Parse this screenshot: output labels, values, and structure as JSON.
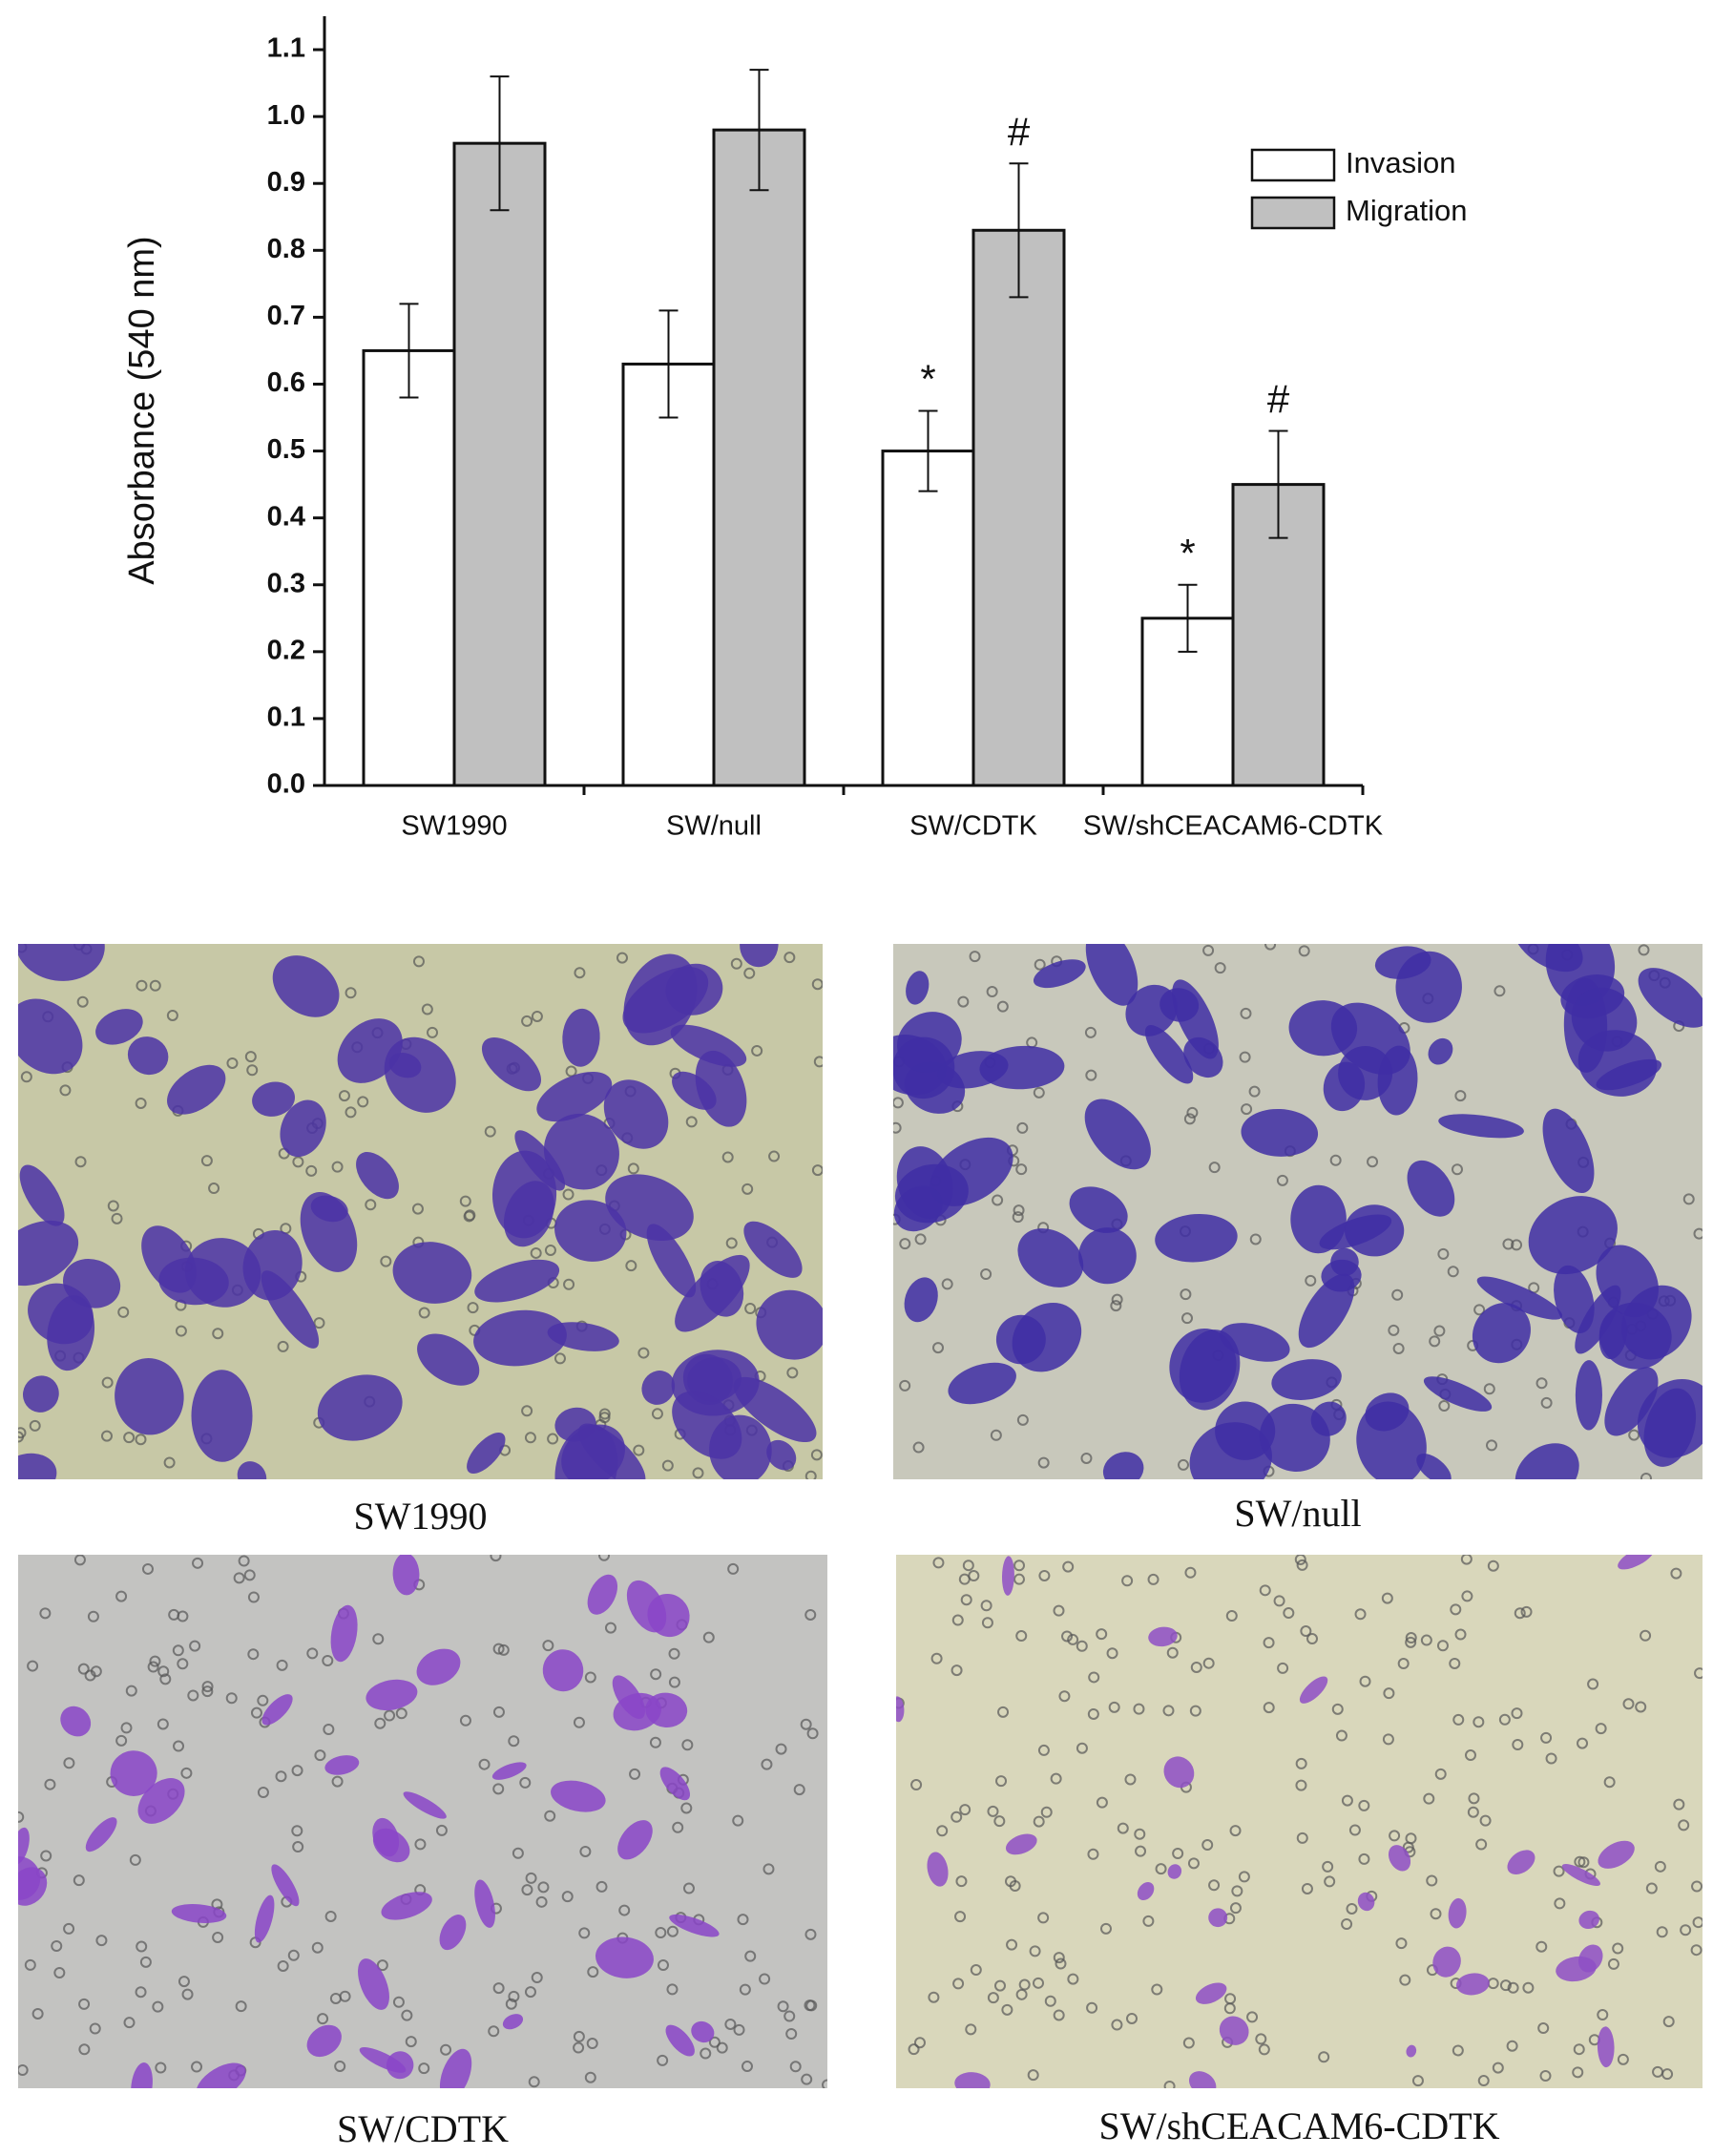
{
  "chart_data": {
    "type": "bar",
    "ylabel": "Absorbance (540 nm)",
    "categories": [
      "SW1990",
      "SW/null",
      "SW/CDTK",
      "SW/shCEACAM6-CDTK"
    ],
    "series": [
      {
        "name": "Invasion",
        "color": "#ffffff",
        "values": [
          0.65,
          0.63,
          0.5,
          0.25
        ],
        "errors": [
          0.07,
          0.08,
          0.06,
          0.05
        ],
        "annotations": [
          null,
          null,
          "*",
          "*"
        ]
      },
      {
        "name": "Migration",
        "color": "#c0c0c0",
        "values": [
          0.96,
          0.98,
          0.83,
          0.45
        ],
        "errors": [
          0.1,
          0.09,
          0.1,
          0.08
        ],
        "annotations": [
          null,
          null,
          "#",
          "#"
        ]
      }
    ],
    "ylim": [
      0,
      1.15
    ],
    "yticks": [
      {
        "value": 0,
        "label": "0.0"
      },
      0.1,
      0.2,
      0.3,
      0.4,
      0.5,
      0.6,
      0.7,
      0.8,
      0.9,
      {
        "value": 1,
        "label": "1.0"
      },
      1.1
    ],
    "legend": "upper right",
    "grid": false
  },
  "panels": [
    {
      "caption": "SW1990"
    },
    {
      "caption": "SW/null"
    },
    {
      "caption": "SW/CDTK"
    },
    {
      "caption": "SW/shCEACAM6-CDTK"
    }
  ]
}
